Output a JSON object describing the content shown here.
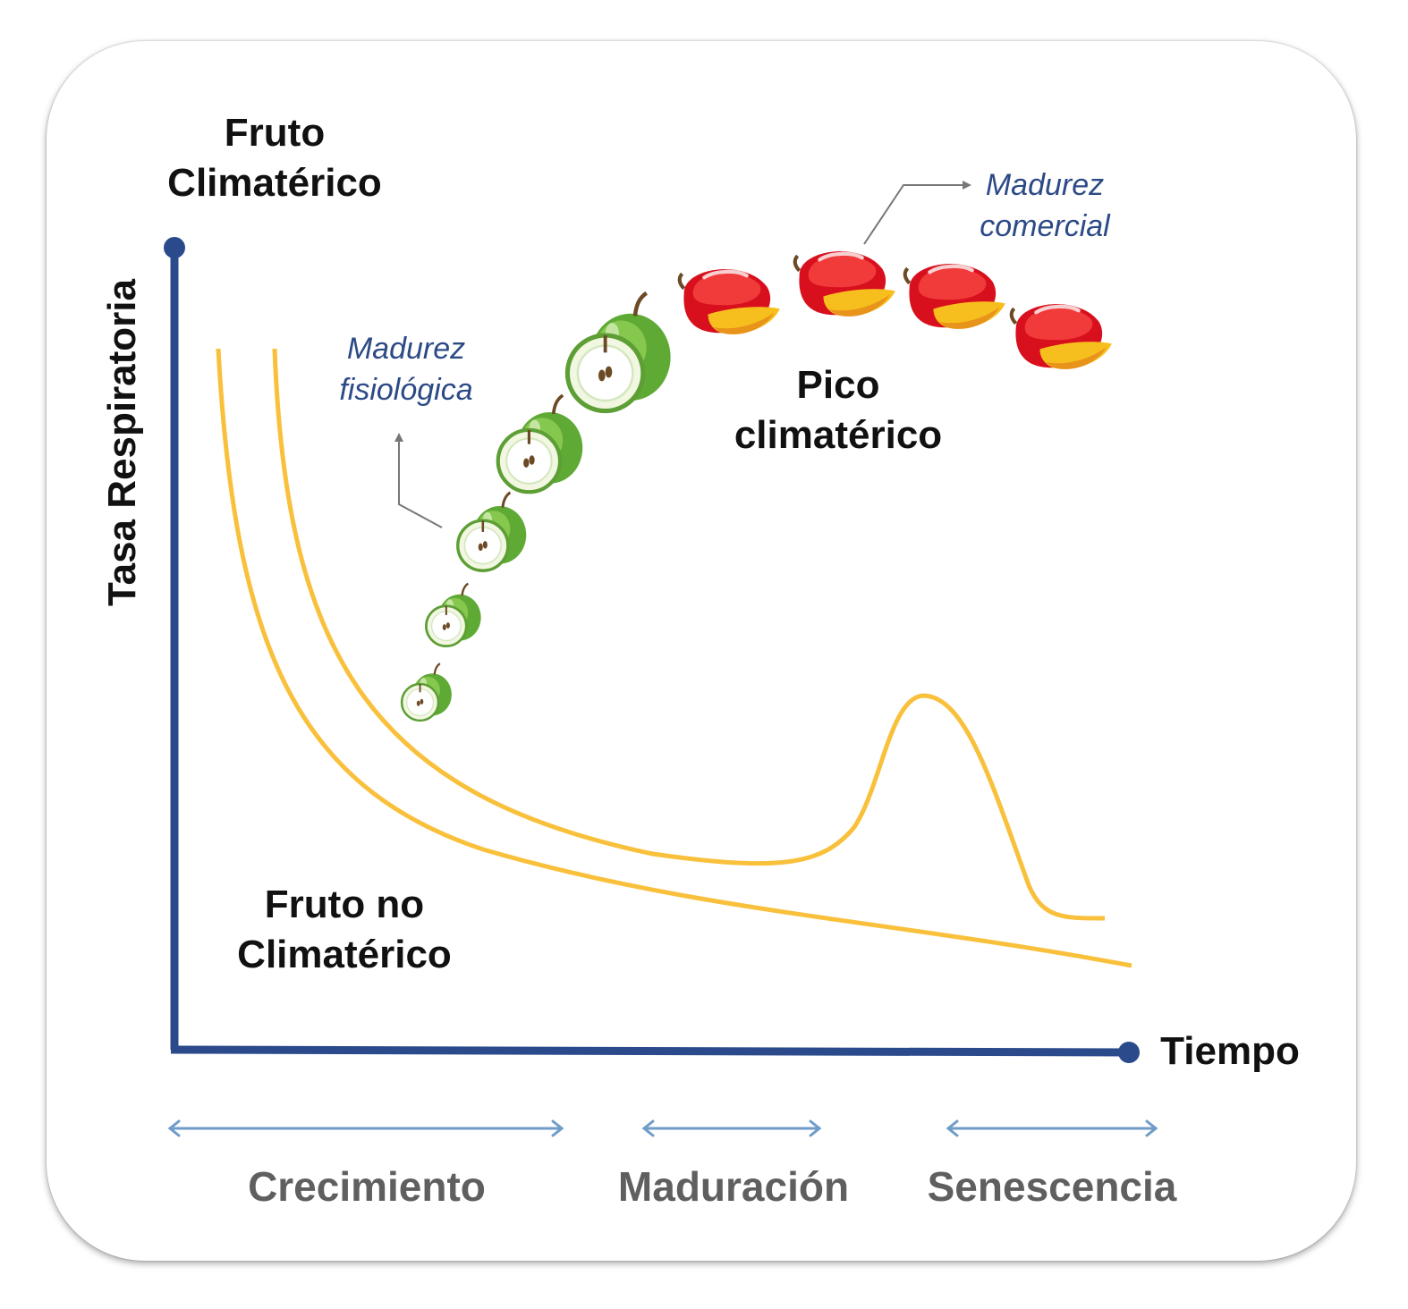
{
  "title": {
    "line1": "Fruto",
    "line2": "Climatérico"
  },
  "y_axis_label": "Tasa Respiratoria",
  "x_axis_label": "Tiempo",
  "non_climacteric": {
    "line1": "Fruto no",
    "line2": "Climatérico"
  },
  "peak_label": {
    "line1": "Pico",
    "line2": "climatérico"
  },
  "annotations": {
    "physiological": {
      "line1": "Madurez",
      "line2": "fisiológica"
    },
    "commercial": {
      "line1": "Madurez",
      "line2": "comercial"
    }
  },
  "phases": [
    "Crecimiento",
    "Maduración",
    "Senescencia"
  ],
  "fruit_icons": {
    "stage1": "green-apple-icon",
    "stage2": "red-mango-icon"
  },
  "colors": {
    "axis": "#2b4a8b",
    "curve": "#f9c03c",
    "phase_arrow": "#6f9cc8",
    "phase_text": "#5f5f5f",
    "annotation_text": "#2c4a86"
  }
}
